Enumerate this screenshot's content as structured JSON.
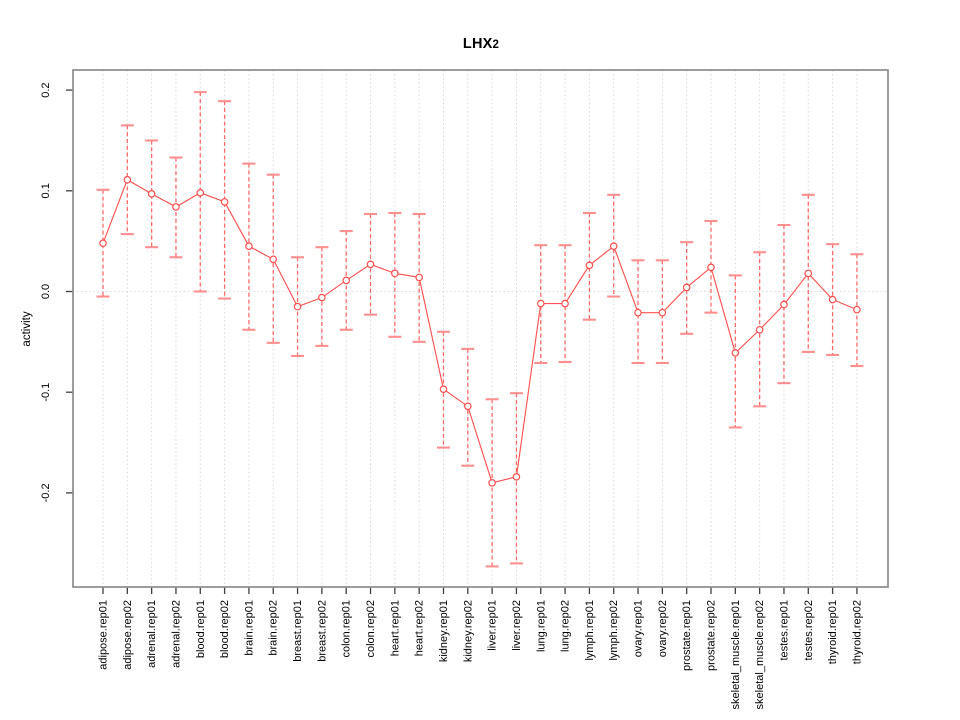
{
  "title_main": "LHX",
  "title_sub": "2",
  "chart_data": {
    "type": "line",
    "subtype": "points-with-error-bars",
    "title": "LHX2",
    "xlabel": "",
    "ylabel": "activity",
    "ylim": [
      -0.295,
      0.22
    ],
    "yticks": [
      -0.2,
      -0.1,
      0.0,
      0.1,
      0.2
    ],
    "ytick_labels": [
      "-0.2",
      "-0.1",
      "0.0",
      "0.1",
      "0.2"
    ],
    "grid": "vertical dotted gridline per category, dotted horizontal line at y=0",
    "legend_position": "none",
    "marker": "open-circle",
    "categories": [
      "adipose.rep01",
      "adipose.rep02",
      "adrenal.rep01",
      "adrenal.rep02",
      "blood.rep01",
      "blood.rep02",
      "brain.rep01",
      "brain.rep02",
      "breast.rep01",
      "breast.rep02",
      "colon.rep01",
      "colon.rep02",
      "heart.rep01",
      "heart.rep02",
      "kidney.rep01",
      "kidney.rep02",
      "liver.rep01",
      "liver.rep02",
      "lung.rep01",
      "lung.rep02",
      "lymph.rep01",
      "lymph.rep02",
      "ovary.rep01",
      "ovary.rep02",
      "prostate.rep01",
      "prostate.rep02",
      "skeletal_muscle.rep01",
      "skeletal_muscle.rep02",
      "testes.rep01",
      "testes.rep02",
      "thyroid.rep01",
      "thyroid.rep02"
    ],
    "series": [
      {
        "name": "activity",
        "values": [
          0.048,
          0.111,
          0.097,
          0.084,
          0.098,
          0.089,
          0.045,
          0.032,
          -0.015,
          -0.006,
          0.011,
          0.027,
          0.018,
          0.014,
          -0.097,
          -0.114,
          -0.19,
          -0.184,
          -0.012,
          -0.012,
          0.026,
          0.045,
          -0.021,
          -0.021,
          0.004,
          0.024,
          -0.061,
          -0.038,
          -0.013,
          0.018,
          -0.008,
          -0.018
        ],
        "error_low": [
          -0.005,
          0.057,
          0.044,
          0.034,
          0.0,
          -0.007,
          -0.038,
          -0.051,
          -0.064,
          -0.054,
          -0.038,
          -0.023,
          -0.045,
          -0.05,
          -0.155,
          -0.173,
          -0.273,
          -0.27,
          -0.071,
          -0.07,
          -0.028,
          -0.005,
          -0.071,
          -0.071,
          -0.042,
          -0.021,
          -0.135,
          -0.114,
          -0.091,
          -0.06,
          -0.063,
          -0.074
        ],
        "error_high": [
          0.101,
          0.165,
          0.15,
          0.133,
          0.198,
          0.189,
          0.127,
          0.116,
          0.034,
          0.044,
          0.06,
          0.077,
          0.078,
          0.077,
          -0.04,
          -0.057,
          -0.107,
          -0.101,
          0.046,
          0.046,
          0.078,
          0.096,
          0.031,
          0.031,
          0.049,
          0.07,
          0.016,
          0.039,
          0.066,
          0.096,
          0.047,
          0.037
        ]
      }
    ],
    "colors": {
      "series_line": "#ff5252",
      "marker_stroke": "#ff4d4d",
      "error_stem": "#ff6b6b",
      "error_cap": "#ff8f8f",
      "gridline": "#d9d9d9",
      "zero_line": "#dcdcdc",
      "plot_border": "#8c8c8c",
      "text": "#000000"
    }
  }
}
